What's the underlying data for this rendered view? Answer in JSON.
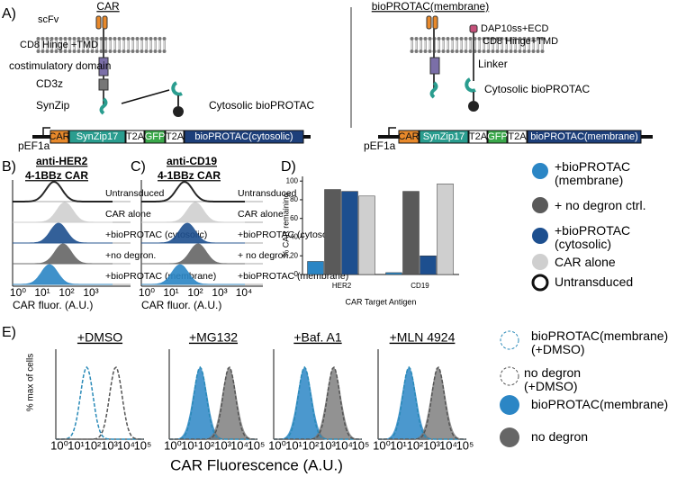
{
  "panel_a": {
    "label": "A)",
    "left": {
      "title": "CAR",
      "scfv": "scFv",
      "hinge": "CD8 Hinge +TMD",
      "costim": "costimulatory domain",
      "cd3z": "CD3z",
      "synzip": "SynZip",
      "protac": "Cytosolic bioPROTAC",
      "promoter": "pEF1a",
      "parts": [
        "CAR",
        "SynZip17",
        "T2A",
        "GFP",
        "T2A",
        "bioPROTAC(cytosolic)"
      ]
    },
    "right": {
      "title": "bioPROTAC(membrane)",
      "ecd": "DAP10ss+ECD",
      "hinge": "CD8 Hinge+TMD",
      "linker": "Linker",
      "protac": "Cytosolic bioPROTAC",
      "promoter": "pEF1a",
      "parts": [
        "CAR",
        "SynZip17",
        "T2A",
        "GFP",
        "T2A",
        "bioPROTAC(membrane)"
      ]
    }
  },
  "panel_b": {
    "label": "B)",
    "title1": "anti-HER2",
    "title2": "4-1BBz CAR",
    "rows": [
      "Untransduced",
      "CAR alone",
      "+bioPROTAC (cytosolic)",
      "+no degron.",
      "+bioPROTAC (membrane)"
    ],
    "xticks": [
      "10⁰",
      "10¹",
      "10²",
      "10³"
    ],
    "xlabel": "CAR fluor. (A.U.)"
  },
  "panel_c": {
    "label": "C)",
    "title1": "anti-CD19",
    "title2": "4-1BBz CAR",
    "rows": [
      "Untransduced",
      "CAR alone",
      "+bioPROTAC (cytosolic)",
      "+ no degron.",
      "+bioPROTAC (membrane)"
    ],
    "xticks": [
      "10⁰",
      "10¹",
      "10²",
      "10³",
      "10⁴"
    ],
    "xlabel": "CAR fluor. (A.U.)"
  },
  "chart_data": {
    "type": "bar",
    "label": "D)",
    "ylabel": "% CAR remaining",
    "xlabel": "CAR Target Antigen",
    "categories": [
      "HER2",
      "CD19"
    ],
    "series": [
      {
        "name": "+bioPROTAC (membrane)",
        "color": "#2b86c5",
        "values": [
          14,
          2
        ]
      },
      {
        "name": "+ no degron ctrl.",
        "color": "#5a5a5a",
        "values": [
          91,
          89
        ]
      },
      {
        "name": "+bioPROTAC (cytosolic)",
        "color": "#1d4f8f",
        "values": [
          89,
          20
        ]
      },
      {
        "name": "CAR alone",
        "color": "#cfcfcf",
        "values": [
          84,
          97
        ]
      }
    ],
    "legend_extra": "Untransduced",
    "ylim": [
      0,
      105
    ],
    "yticks": [
      0,
      20,
      40,
      60,
      80,
      100
    ]
  },
  "panel_e": {
    "label": "E)",
    "titles": [
      "+DMSO",
      "+MG132",
      "+Baf. A1",
      "+MLN 4924"
    ],
    "ylabel": "% max of cells",
    "xticks": [
      "10⁰",
      "10¹",
      "10²",
      "10³",
      "10⁴",
      "10⁵"
    ],
    "xlabel": "CAR Fluorescence (A.U.)",
    "legend": [
      "bioPROTAC(membrane) (+DMSO)",
      "no degron (+DMSO)",
      "bioPROTAC(membrane)",
      "no degron"
    ]
  }
}
